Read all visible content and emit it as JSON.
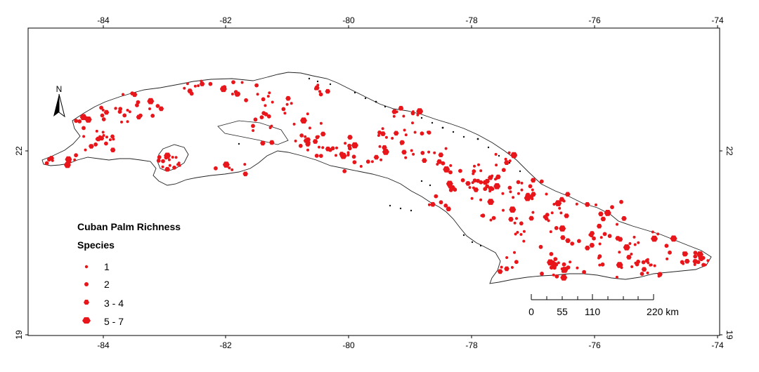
{
  "map": {
    "lon_ticks": [
      "-84",
      "-82",
      "-80",
      "-78",
      "-76",
      "-74"
    ],
    "lat_ticks": [
      "22",
      "19"
    ],
    "north_label": "N",
    "point_color": "#e8161b",
    "legend": {
      "title": "Cuban Palm Richness",
      "subtitle": "Species",
      "items": [
        {
          "label": "1",
          "size": "small"
        },
        {
          "label": "2",
          "size": "medium"
        },
        {
          "label": "3 - 4",
          "size": "large"
        },
        {
          "label": "5 - 7",
          "size": "xlarge"
        }
      ]
    },
    "scalebar": {
      "labels": [
        "0",
        "55",
        "110",
        "220 km"
      ]
    }
  }
}
